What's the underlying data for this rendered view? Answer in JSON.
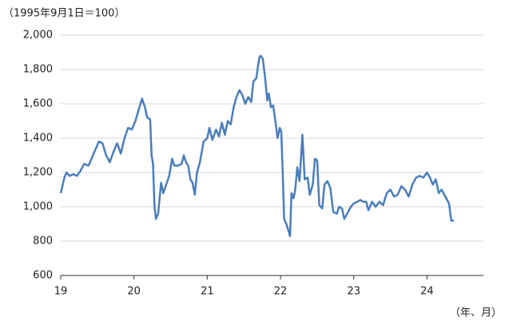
{
  "chart_data": {
    "type": "line",
    "annotations": [
      "（1995年9月1日＝100）",
      "（年、月）"
    ],
    "x": [
      19.0,
      19.05,
      19.08,
      19.12,
      19.17,
      19.22,
      19.27,
      19.32,
      19.38,
      19.42,
      19.47,
      19.52,
      19.57,
      19.62,
      19.67,
      19.72,
      19.77,
      19.82,
      19.87,
      19.92,
      19.97,
      20.02,
      20.06,
      20.11,
      20.15,
      20.18,
      20.22,
      20.24,
      20.26,
      20.28,
      20.3,
      20.33,
      20.37,
      20.4,
      20.44,
      20.48,
      20.52,
      20.55,
      20.6,
      20.65,
      20.68,
      20.71,
      20.74,
      20.77,
      20.8,
      20.83,
      20.86,
      20.9,
      20.95,
      21.0,
      21.03,
      21.07,
      21.12,
      21.16,
      21.2,
      21.24,
      21.28,
      21.32,
      21.36,
      21.4,
      21.44,
      21.48,
      21.52,
      21.56,
      21.6,
      21.63,
      21.67,
      21.71,
      21.73,
      21.76,
      21.79,
      21.82,
      21.84,
      21.87,
      21.9,
      21.93,
      21.96,
      21.99,
      22.01,
      22.03,
      22.05,
      22.08,
      22.11,
      22.13,
      22.15,
      22.18,
      22.2,
      22.23,
      22.26,
      22.3,
      22.33,
      22.37,
      22.4,
      22.44,
      22.47,
      22.5,
      22.53,
      22.57,
      22.6,
      22.64,
      22.68,
      22.72,
      22.77,
      22.8,
      22.84,
      22.87,
      22.91,
      22.96,
      23.0,
      23.05,
      23.09,
      23.13,
      23.17,
      23.2,
      23.25,
      23.3,
      23.35,
      23.4,
      23.45,
      23.5,
      23.55,
      23.6,
      23.65,
      23.7,
      23.75,
      23.8,
      23.85,
      23.9,
      23.95,
      24.0,
      24.04,
      24.08,
      24.12,
      24.16,
      24.2,
      24.25,
      24.3,
      24.33,
      24.37
    ],
    "series": [
      {
        "color": "#4a7ebb",
        "values": [
          1080,
          1170,
          1200,
          1180,
          1190,
          1180,
          1210,
          1250,
          1240,
          1280,
          1330,
          1380,
          1370,
          1300,
          1260,
          1320,
          1370,
          1310,
          1400,
          1460,
          1450,
          1500,
          1560,
          1630,
          1580,
          1520,
          1510,
          1300,
          1250,
          1000,
          930,
          960,
          1140,
          1080,
          1130,
          1180,
          1280,
          1240,
          1240,
          1250,
          1300,
          1260,
          1240,
          1160,
          1140,
          1070,
          1200,
          1260,
          1380,
          1400,
          1460,
          1390,
          1450,
          1410,
          1490,
          1420,
          1500,
          1480,
          1580,
          1640,
          1680,
          1650,
          1600,
          1640,
          1610,
          1730,
          1750,
          1870,
          1880,
          1860,
          1750,
          1620,
          1660,
          1580,
          1590,
          1500,
          1400,
          1460,
          1440,
          1200,
          930,
          900,
          860,
          830,
          1080,
          1050,
          1100,
          1230,
          1150,
          1420,
          1160,
          1170,
          1070,
          1130,
          1280,
          1270,
          1010,
          990,
          1130,
          1150,
          1110,
          970,
          960,
          1000,
          990,
          930,
          960,
          1000,
          1020,
          1030,
          1040,
          1030,
          1030,
          980,
          1030,
          1000,
          1030,
          1010,
          1080,
          1100,
          1060,
          1070,
          1120,
          1100,
          1060,
          1130,
          1170,
          1180,
          1170,
          1200,
          1170,
          1130,
          1160,
          1080,
          1100,
          1060,
          1020,
          920,
          920
        ]
      }
    ],
    "xlim": [
      19,
      24.77
    ],
    "xticks": [
      19,
      20,
      21,
      22,
      23,
      24
    ],
    "ylim": [
      600,
      2000
    ],
    "yticks": [
      600,
      800,
      {
        "value": 1000,
        "label": "1,000"
      },
      {
        "value": 1200,
        "label": "1,200"
      },
      {
        "value": 1400,
        "label": "1,400"
      },
      {
        "value": 1600,
        "label": "1,600"
      },
      {
        "value": 1800,
        "label": "1,800"
      },
      {
        "value": 2000,
        "label": "2,000"
      }
    ],
    "grid": true
  }
}
